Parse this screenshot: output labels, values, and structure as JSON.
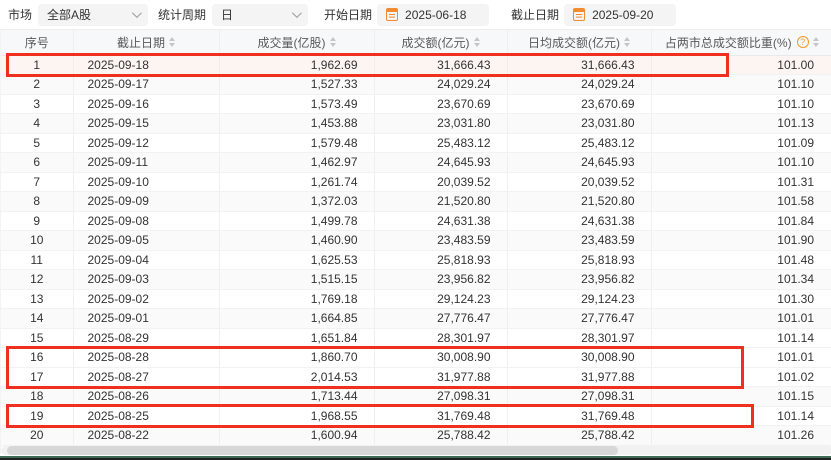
{
  "filters": {
    "market_label": "市场",
    "market_value": "全部A股",
    "period_label": "统计周期",
    "period_value": "日",
    "start_label": "开始日期",
    "start_value": "2025-06-18",
    "end_label": "截止日期",
    "end_value": "2025-09-20"
  },
  "table": {
    "columns": [
      {
        "label": "序号",
        "sortable": false,
        "help": false
      },
      {
        "label": "截止日期",
        "sortable": true,
        "help": false
      },
      {
        "label": "成交量(亿股)",
        "sortable": true,
        "help": false
      },
      {
        "label": "成交额(亿元)",
        "sortable": true,
        "help": false
      },
      {
        "label": "日均成交额(亿元)",
        "sortable": true,
        "help": false
      },
      {
        "label": "占两市总成交额比重(%)",
        "sortable": true,
        "help": true
      }
    ],
    "help_icon_glyph": "?",
    "rows": [
      [
        "1",
        "2025-09-18",
        "1,962.69",
        "31,666.43",
        "31,666.43",
        "101.00"
      ],
      [
        "2",
        "2025-09-17",
        "1,527.33",
        "24,029.24",
        "24,029.24",
        "101.10"
      ],
      [
        "3",
        "2025-09-16",
        "1,573.49",
        "23,670.69",
        "23,670.69",
        "101.10"
      ],
      [
        "4",
        "2025-09-15",
        "1,453.88",
        "23,031.80",
        "23,031.80",
        "101.13"
      ],
      [
        "5",
        "2025-09-12",
        "1,579.48",
        "25,483.12",
        "25,483.12",
        "101.09"
      ],
      [
        "6",
        "2025-09-11",
        "1,462.97",
        "24,645.93",
        "24,645.93",
        "101.10"
      ],
      [
        "7",
        "2025-09-10",
        "1,261.74",
        "20,039.52",
        "20,039.52",
        "101.31"
      ],
      [
        "8",
        "2025-09-09",
        "1,372.03",
        "21,520.80",
        "21,520.80",
        "101.58"
      ],
      [
        "9",
        "2025-09-08",
        "1,499.78",
        "24,631.38",
        "24,631.38",
        "101.84"
      ],
      [
        "10",
        "2025-09-05",
        "1,460.90",
        "23,483.59",
        "23,483.59",
        "101.90"
      ],
      [
        "11",
        "2025-09-04",
        "1,625.53",
        "25,818.93",
        "25,818.93",
        "101.48"
      ],
      [
        "12",
        "2025-09-03",
        "1,515.15",
        "23,956.82",
        "23,956.82",
        "101.34"
      ],
      [
        "13",
        "2025-09-02",
        "1,769.18",
        "29,124.23",
        "29,124.23",
        "101.30"
      ],
      [
        "14",
        "2025-09-01",
        "1,664.85",
        "27,776.47",
        "27,776.47",
        "101.01"
      ],
      [
        "15",
        "2025-08-29",
        "1,651.84",
        "28,301.97",
        "28,301.97",
        "101.14"
      ],
      [
        "16",
        "2025-08-28",
        "1,860.70",
        "30,008.90",
        "30,008.90",
        "101.01"
      ],
      [
        "17",
        "2025-08-27",
        "2,014.53",
        "31,977.88",
        "31,977.88",
        "101.02"
      ],
      [
        "18",
        "2025-08-26",
        "1,713.44",
        "27,098.31",
        "27,098.31",
        "101.15"
      ],
      [
        "19",
        "2025-08-25",
        "1,968.55",
        "31,769.48",
        "31,769.48",
        "101.14"
      ],
      [
        "20",
        "2025-08-22",
        "1,600.94",
        "25,788.42",
        "25,788.42",
        "101.26"
      ]
    ],
    "highlights": [
      {
        "from_row": 1,
        "to_row": 1
      },
      {
        "from_row": 16,
        "to_row": 17
      },
      {
        "from_row": 19,
        "to_row": 19
      }
    ]
  },
  "colors": {
    "highlight_border": "#f0301f",
    "accent_orange": "#f59a23",
    "bottom_bar_green": "#3d6b55",
    "row1_tint": "#fdf5f2"
  }
}
